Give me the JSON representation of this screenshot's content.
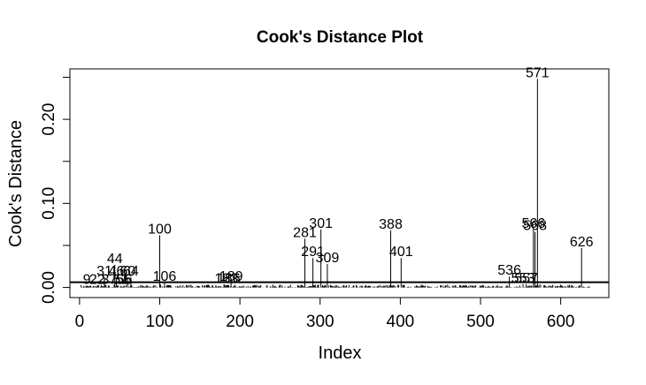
{
  "chart_data": {
    "type": "bar",
    "title": "Cook's Distance Plot",
    "xlabel": "Index",
    "ylabel": "Cook's Distance",
    "xlim": [
      -12,
      660
    ],
    "ylim": [
      -0.012,
      0.26
    ],
    "x_ticks": [
      0,
      100,
      200,
      300,
      400,
      500,
      600
    ],
    "y_ticks": [
      0.0,
      0.1,
      0.2
    ],
    "y_tick_labels": [
      "0.00",
      "0.10",
      "0.20"
    ],
    "x_tick_labels": [
      "0",
      "100",
      "200",
      "300",
      "400",
      "500",
      "600"
    ],
    "cutoff_line": 0.0063,
    "n_obs": 636,
    "labeled_points": [
      {
        "x": 9,
        "y": 0.002,
        "label": "9"
      },
      {
        "x": 22,
        "y": 0.002,
        "label": "22"
      },
      {
        "x": 31,
        "y": 0.012,
        "label": "31"
      },
      {
        "x": 37,
        "y": 0.002,
        "label": "37"
      },
      {
        "x": 44,
        "y": 0.027,
        "label": "44"
      },
      {
        "x": 46,
        "y": 0.012,
        "label": "46"
      },
      {
        "x": 51,
        "y": 0.002,
        "label": "51"
      },
      {
        "x": 55,
        "y": 0.002,
        "label": "55"
      },
      {
        "x": 56,
        "y": 0.002,
        "label": "56"
      },
      {
        "x": 60,
        "y": 0.012,
        "label": "60"
      },
      {
        "x": 64,
        "y": 0.012,
        "label": "64"
      },
      {
        "x": 100,
        "y": 0.062,
        "label": "100"
      },
      {
        "x": 106,
        "y": 0.006,
        "label": "106"
      },
      {
        "x": 183,
        "y": 0.003,
        "label": "183"
      },
      {
        "x": 186,
        "y": 0.003,
        "label": "186"
      },
      {
        "x": 189,
        "y": 0.006,
        "label": "189"
      },
      {
        "x": 281,
        "y": 0.058,
        "label": "281"
      },
      {
        "x": 291,
        "y": 0.035,
        "label": "291"
      },
      {
        "x": 301,
        "y": 0.069,
        "label": "301"
      },
      {
        "x": 309,
        "y": 0.028,
        "label": "309"
      },
      {
        "x": 388,
        "y": 0.068,
        "label": "388"
      },
      {
        "x": 401,
        "y": 0.035,
        "label": "401"
      },
      {
        "x": 536,
        "y": 0.013,
        "label": "536"
      },
      {
        "x": 553,
        "y": 0.004,
        "label": "553"
      },
      {
        "x": 557,
        "y": 0.004,
        "label": "557"
      },
      {
        "x": 566,
        "y": 0.069,
        "label": "566"
      },
      {
        "x": 568,
        "y": 0.066,
        "label": "568"
      },
      {
        "x": 571,
        "y": 0.248,
        "label": "571"
      },
      {
        "x": 626,
        "y": 0.047,
        "label": "626"
      }
    ]
  }
}
